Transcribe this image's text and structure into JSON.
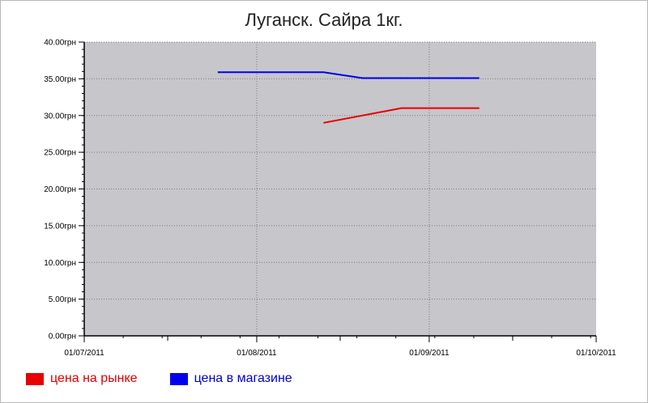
{
  "chart_data": {
    "type": "line",
    "title": "Луганск. Сайра 1кг.",
    "xlabel": "",
    "ylabel": "",
    "ylim": [
      0,
      40
    ],
    "xlim": [
      "2011-07-01",
      "2011-10-01"
    ],
    "y_ticks": [
      "0.00грн",
      "5.00грн",
      "10.00грн",
      "15.00грн",
      "20.00грн",
      "25.00грн",
      "30.00грн",
      "35.00грн",
      "40.00грн"
    ],
    "y_tick_values": [
      0,
      5,
      10,
      15,
      20,
      25,
      30,
      35,
      40
    ],
    "x_ticks": [
      "01/07/2011",
      "01/08/2011",
      "01/09/2011",
      "01/10/2011"
    ],
    "x_tick_dates": [
      "2011-07-01",
      "2011-08-01",
      "2011-09-01",
      "2011-10-01"
    ],
    "grid": true,
    "legend_position": "bottom-left",
    "series": [
      {
        "name": "цена на рынке",
        "color": "#e60000",
        "points": [
          {
            "x": "2011-08-13",
            "y": 29
          },
          {
            "x": "2011-08-27",
            "y": 31
          },
          {
            "x": "2011-09-10",
            "y": 31
          }
        ]
      },
      {
        "name": "цена в магазине",
        "color": "#0000ee",
        "points": [
          {
            "x": "2011-07-25",
            "y": 35.9
          },
          {
            "x": "2011-08-13",
            "y": 35.9
          },
          {
            "x": "2011-08-20",
            "y": 35.1
          },
          {
            "x": "2011-09-10",
            "y": 35.1
          }
        ]
      }
    ]
  },
  "colors": {
    "plot_background": "#c7c6ca",
    "grid": "#7a7a7a"
  }
}
